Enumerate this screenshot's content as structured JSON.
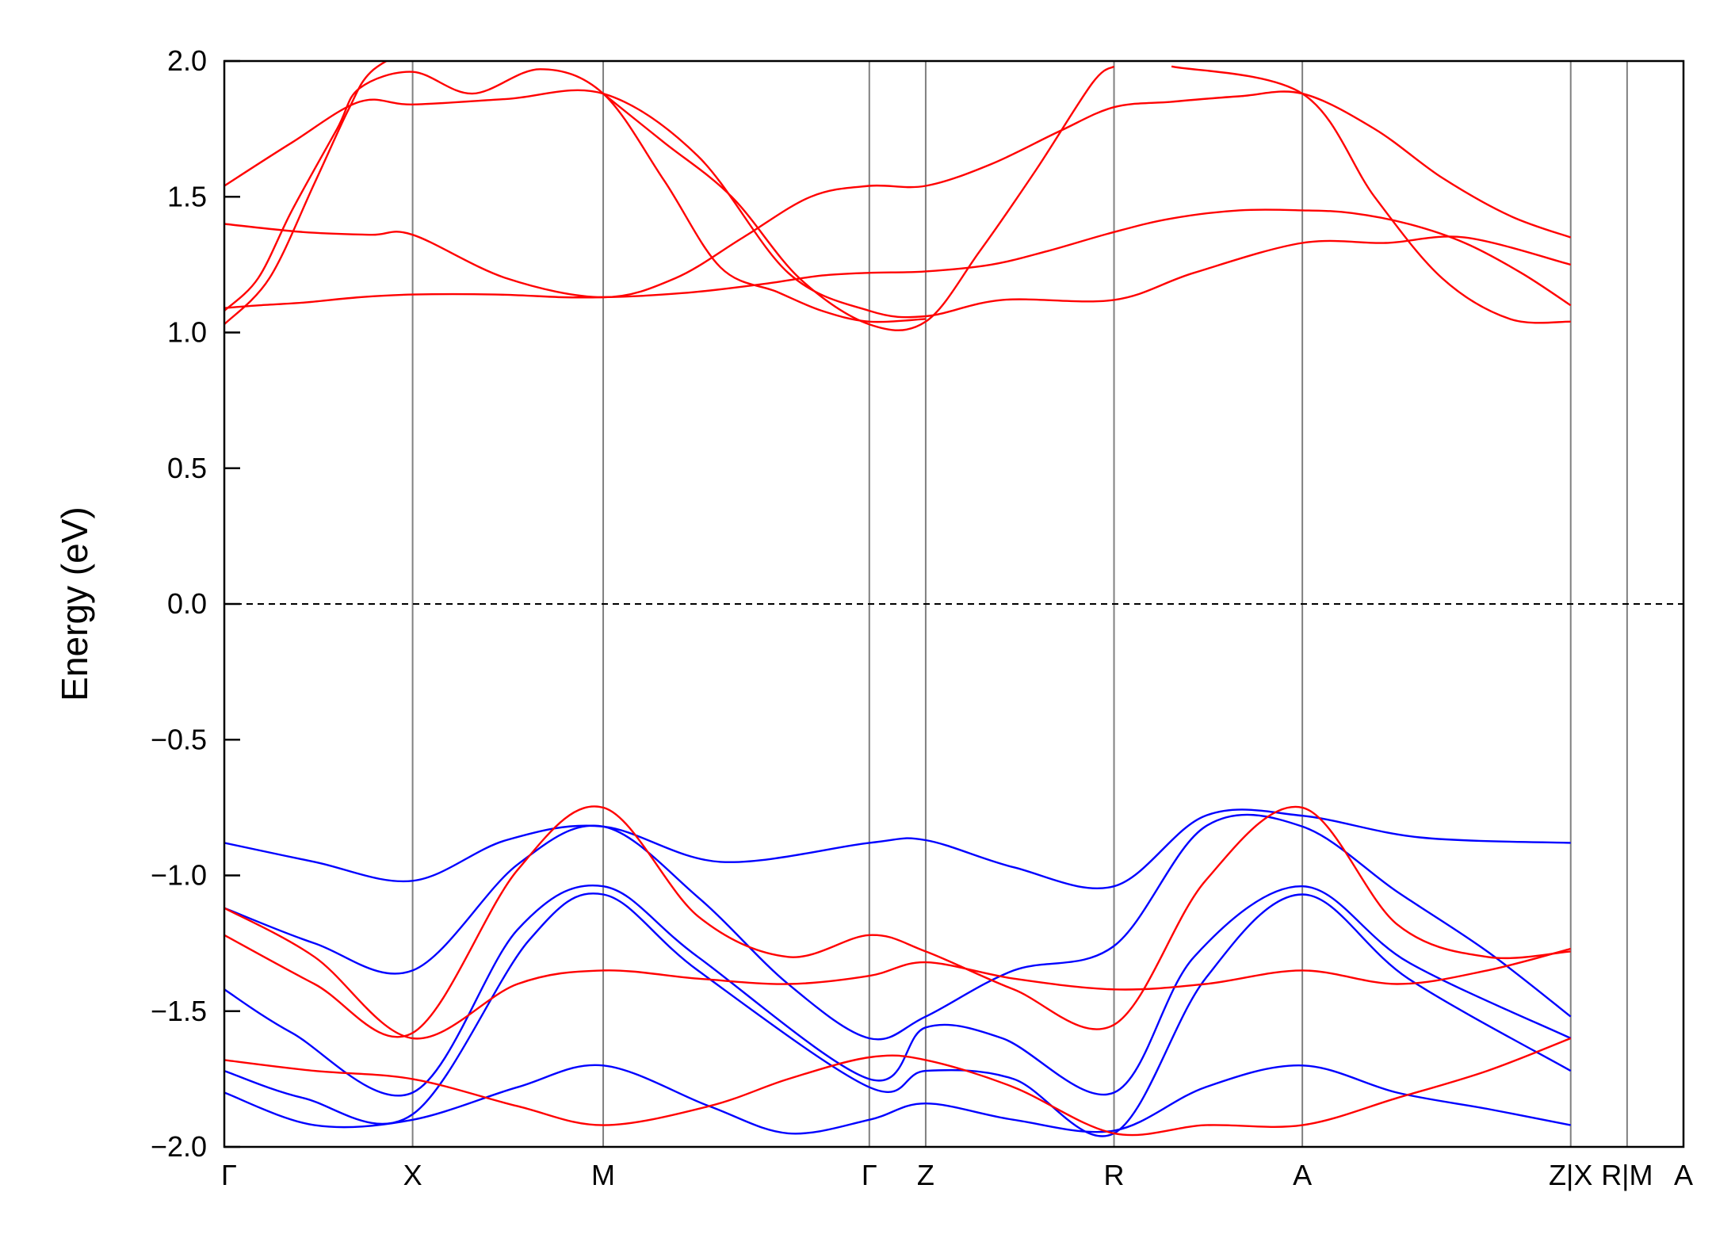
{
  "chart_data": {
    "type": "line",
    "title": "",
    "xlabel": "",
    "ylabel": "Energy (eV)",
    "ylim": [
      -2.0,
      2.0
    ],
    "yticks": [
      -2.0,
      -1.5,
      -1.0,
      -0.5,
      0.0,
      0.5,
      1.0,
      1.5,
      2.0
    ],
    "ytick_labels": [
      "−2.0",
      "−1.5",
      "−1.0",
      "−0.5",
      "0.0",
      "0.5",
      "1.0",
      "1.5",
      "2.0"
    ],
    "x_range": [
      0,
      12.94
    ],
    "kpoints": [
      {
        "label": "Γ",
        "x": 0
      },
      {
        "label": "X",
        "x": 1.67
      },
      {
        "label": "M",
        "x": 3.36
      },
      {
        "label": "Γ",
        "x": 5.72
      },
      {
        "label": "Z",
        "x": 6.22
      },
      {
        "label": "R",
        "x": 7.89
      },
      {
        "label": "A",
        "x": 9.56
      },
      {
        "label": "Z|X",
        "x": 11.94
      },
      {
        "label": "R|M",
        "x": 12.44
      },
      {
        "label": "A",
        "x": 12.94
      }
    ],
    "fermi_level": 0.0,
    "colors": {
      "valence": "#0000ff",
      "conduction": "#ff0000",
      "kline": "#808080",
      "fermi": "#000000"
    },
    "series": [
      {
        "color": "#0000ff",
        "x": [
          0,
          0.8,
          1.67,
          2.5,
          3.36,
          4.4,
          5.72,
          6.22,
          7.0,
          7.89,
          8.7,
          9.56,
          10.6,
          11.94
        ],
        "y": [
          -0.88,
          -0.95,
          -1.02,
          -0.87,
          -0.82,
          -0.95,
          -0.88,
          -0.87,
          -0.97,
          -1.04,
          -0.78,
          -0.78,
          -0.86,
          -0.88
        ]
      },
      {
        "color": "#0000ff",
        "x": [
          0,
          0.8,
          1.67,
          2.6,
          3.36,
          4.2,
          5.0,
          5.72,
          6.22,
          7.0,
          7.89,
          8.7,
          9.56,
          10.4,
          11.2,
          11.94
        ],
        "y": [
          -1.12,
          -1.25,
          -1.35,
          -0.96,
          -0.82,
          -1.08,
          -1.4,
          -1.6,
          -1.52,
          -1.35,
          -1.26,
          -0.82,
          -0.82,
          -1.06,
          -1.28,
          -1.52
        ]
      },
      {
        "color": "#0000ff",
        "x": [
          0,
          0.6,
          1.67,
          2.6,
          3.36,
          4.2,
          5.72,
          6.22,
          6.9,
          7.89,
          8.6,
          9.56,
          10.5,
          11.94
        ],
        "y": [
          -1.42,
          -1.58,
          -1.8,
          -1.2,
          -1.04,
          -1.3,
          -1.75,
          -1.56,
          -1.6,
          -1.8,
          -1.3,
          -1.04,
          -1.32,
          -1.6
        ]
      },
      {
        "color": "#0000ff",
        "x": [
          0,
          0.7,
          1.67,
          2.7,
          3.36,
          4.2,
          5.72,
          6.22,
          7.0,
          7.89,
          8.7,
          9.56,
          10.5,
          11.94
        ],
        "y": [
          -1.72,
          -1.82,
          -1.88,
          -1.24,
          -1.07,
          -1.35,
          -1.78,
          -1.72,
          -1.75,
          -1.95,
          -1.38,
          -1.07,
          -1.38,
          -1.72
        ]
      },
      {
        "color": "#0000ff",
        "x": [
          0,
          0.8,
          1.67,
          2.6,
          3.36,
          4.3,
          5.0,
          5.72,
          6.22,
          7.0,
          7.89,
          8.7,
          9.56,
          10.4,
          11.2,
          11.94
        ],
        "y": [
          -1.8,
          -1.92,
          -1.9,
          -1.78,
          -1.7,
          -1.85,
          -1.95,
          -1.9,
          -1.84,
          -1.9,
          -1.94,
          -1.78,
          -1.7,
          -1.8,
          -1.86,
          -1.92
        ]
      },
      {
        "color": "#ff0000",
        "x": [
          0,
          0.3,
          0.7,
          1.2,
          1.67,
          2.4,
          3.0,
          3.36,
          3.7,
          4.2,
          4.8,
          5.3,
          5.72,
          6.22,
          6.8,
          7.3,
          7.89,
          8.4,
          9.0,
          9.56,
          10.0,
          10.5,
          11.0,
          11.5,
          11.94
        ],
        "y": [
          1.09,
          1.1,
          1.11,
          1.13,
          1.14,
          1.14,
          1.13,
          1.13,
          1.135,
          1.15,
          1.18,
          1.21,
          1.22,
          1.225,
          1.25,
          1.3,
          1.37,
          1.42,
          1.45,
          1.45,
          1.44,
          1.4,
          1.33,
          1.22,
          1.1
        ]
      },
      {
        "color": "#ff0000",
        "x": [
          0,
          0.7,
          1.3,
          1.67,
          2.5,
          3.36,
          4.0,
          4.6,
          5.2,
          5.72,
          6.22,
          6.8,
          7.4,
          7.89,
          8.4,
          9.0,
          9.56,
          10.2,
          10.8,
          11.4,
          11.94
        ],
        "y": [
          1.4,
          1.37,
          1.36,
          1.36,
          1.2,
          1.13,
          1.2,
          1.35,
          1.5,
          1.54,
          1.54,
          1.62,
          1.74,
          1.83,
          1.85,
          1.87,
          1.88,
          1.75,
          1.57,
          1.43,
          1.35
        ]
      },
      {
        "color": "#ff0000",
        "x": [
          0,
          0.6,
          1.2,
          1.67,
          2.5,
          3.36,
          4.2,
          5.0,
          5.72,
          6.22,
          6.9,
          7.89,
          8.6,
          9.56,
          10.3,
          11.0,
          11.94
        ],
        "y": [
          1.54,
          1.7,
          1.85,
          1.84,
          1.86,
          1.88,
          1.65,
          1.22,
          1.08,
          1.06,
          1.12,
          1.12,
          1.22,
          1.33,
          1.33,
          1.35,
          1.25
        ]
      },
      {
        "color": "#ff0000",
        "x": [
          0,
          0.3,
          0.6,
          1.0,
          1.2,
          1.67,
          2.2,
          2.8,
          3.36,
          3.9,
          4.4,
          4.9,
          5.3,
          5.72,
          6.22
        ],
        "y": [
          1.08,
          1.2,
          1.45,
          1.75,
          1.9,
          1.96,
          1.88,
          1.97,
          1.88,
          1.56,
          1.24,
          1.15,
          1.08,
          1.04,
          1.05
        ]
      },
      {
        "color": "#ff0000",
        "x": [
          0,
          0.4,
          0.8,
          1.1,
          1.3,
          1.67
        ],
        "y": [
          1.03,
          1.2,
          1.55,
          1.82,
          1.96,
          2.05
        ]
      },
      {
        "color": "#ff0000",
        "x": [
          3.36,
          3.9,
          4.5,
          5.1,
          5.72,
          6.22,
          6.7,
          7.2,
          7.7,
          7.89
        ],
        "y": [
          1.88,
          1.7,
          1.5,
          1.2,
          1.03,
          1.04,
          1.3,
          1.6,
          1.92,
          1.98
        ]
      },
      {
        "color": "#ff0000",
        "x": [
          8.4,
          9.56,
          10.2,
          10.8,
          11.4,
          11.94
        ],
        "y": [
          1.98,
          1.88,
          1.5,
          1.2,
          1.05,
          1.04
        ]
      },
      {
        "color": "#ff0000",
        "x": [
          0,
          0.8,
          1.67,
          2.6,
          3.36,
          4.2,
          5.0,
          5.72,
          6.22,
          7.0,
          7.89,
          8.7,
          9.56,
          10.4,
          11.2,
          11.94
        ],
        "y": [
          -1.22,
          -1.4,
          -1.58,
          -0.98,
          -0.75,
          -1.15,
          -1.3,
          -1.22,
          -1.28,
          -1.42,
          -1.55,
          -1.02,
          -0.75,
          -1.18,
          -1.3,
          -1.28
        ]
      },
      {
        "color": "#ff0000",
        "x": [
          0,
          0.8,
          1.67,
          2.6,
          3.36,
          4.2,
          5.0,
          5.72,
          6.22,
          7.0,
          7.89,
          8.7,
          9.56,
          10.4,
          11.2,
          11.94
        ],
        "y": [
          -1.12,
          -1.3,
          -1.6,
          -1.4,
          -1.35,
          -1.38,
          -1.4,
          -1.37,
          -1.32,
          -1.38,
          -1.42,
          -1.4,
          -1.35,
          -1.4,
          -1.35,
          -1.27
        ]
      },
      {
        "color": "#ff0000",
        "x": [
          0,
          0.8,
          1.67,
          2.6,
          3.36,
          4.3,
          5.0,
          5.72,
          6.22,
          7.0,
          7.89,
          8.7,
          9.56,
          10.4,
          11.2,
          11.94
        ],
        "y": [
          -1.68,
          -1.72,
          -1.75,
          -1.85,
          -1.92,
          -1.85,
          -1.75,
          -1.67,
          -1.68,
          -1.78,
          -1.95,
          -1.92,
          -1.92,
          -1.82,
          -1.72,
          -1.6
        ]
      }
    ]
  }
}
